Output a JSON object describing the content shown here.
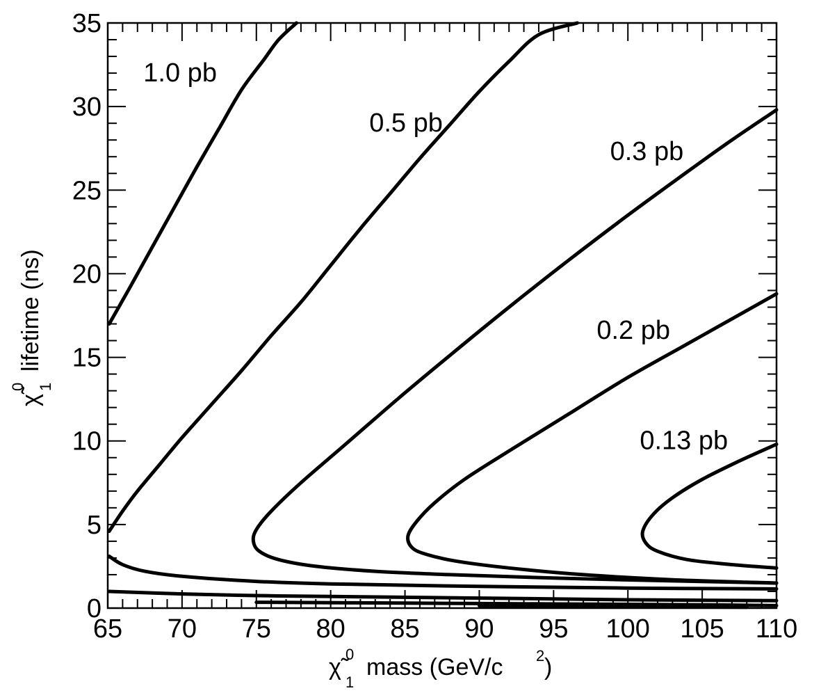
{
  "chart_data": {
    "type": "line",
    "title": "",
    "xlabel": {
      "main": "mass (GeV/c",
      "sup": "2",
      "close": ")",
      "symbol": "χ̃",
      "symbol_sup": "0",
      "symbol_sub": "1"
    },
    "ylabel": {
      "main": "lifetime (ns)",
      "symbol": "χ̃",
      "symbol_sup": "0",
      "symbol_sub": "1"
    },
    "xlim": [
      65,
      110
    ],
    "ylim": [
      0,
      35
    ],
    "x_ticks": [
      65,
      70,
      75,
      80,
      85,
      90,
      95,
      100,
      105,
      110
    ],
    "y_ticks": [
      0,
      5,
      10,
      15,
      20,
      25,
      30,
      35
    ],
    "grid": false,
    "series": [
      {
        "name": "1.0 pb",
        "points": [
          [
            65.1,
            17.0
          ],
          [
            66.5,
            19.2
          ],
          [
            68.0,
            21.6
          ],
          [
            69.5,
            24.0
          ],
          [
            71.0,
            26.4
          ],
          [
            72.5,
            28.7
          ],
          [
            74.0,
            31.0
          ],
          [
            75.5,
            32.8
          ],
          [
            76.5,
            34.0
          ],
          [
            77.7,
            35.0
          ]
        ]
      },
      {
        "name": "0.5 pb",
        "points": [
          [
            65.1,
            4.6
          ],
          [
            66.0,
            5.8
          ],
          [
            67.0,
            7.0
          ],
          [
            68.5,
            8.6
          ],
          [
            70.0,
            10.2
          ],
          [
            72.0,
            12.2
          ],
          [
            74.0,
            14.2
          ],
          [
            76.0,
            16.3
          ],
          [
            78.0,
            18.3
          ],
          [
            80.0,
            20.5
          ],
          [
            82.0,
            22.7
          ],
          [
            84.0,
            24.8
          ],
          [
            86.0,
            26.9
          ],
          [
            88.0,
            28.9
          ],
          [
            90.0,
            30.9
          ],
          [
            92.0,
            32.7
          ],
          [
            94.0,
            34.3
          ],
          [
            96.6,
            35.0
          ]
        ]
      },
      {
        "name": "0.3 pb",
        "points": [
          [
            110.0,
            29.8
          ],
          [
            107.0,
            28.0
          ],
          [
            104.0,
            26.1
          ],
          [
            100.0,
            23.5
          ],
          [
            96.0,
            20.8
          ],
          [
            92.0,
            18.0
          ],
          [
            88.0,
            15.1
          ],
          [
            84.5,
            12.5
          ],
          [
            81.0,
            9.8
          ],
          [
            78.0,
            7.5
          ],
          [
            76.0,
            5.8
          ],
          [
            75.0,
            4.7
          ],
          [
            74.8,
            4.0
          ],
          [
            75.2,
            3.4
          ],
          [
            76.5,
            2.9
          ],
          [
            79.0,
            2.5
          ],
          [
            83.0,
            2.2
          ],
          [
            88.0,
            2.0
          ],
          [
            95.0,
            1.8
          ],
          [
            102.0,
            1.65
          ],
          [
            110.0,
            1.5
          ]
        ]
      },
      {
        "name": "0.2 pb",
        "points": [
          [
            110.0,
            18.8
          ],
          [
            107.0,
            17.3
          ],
          [
            104.0,
            15.8
          ],
          [
            100.0,
            13.8
          ],
          [
            96.0,
            11.6
          ],
          [
            92.0,
            9.4
          ],
          [
            89.0,
            7.7
          ],
          [
            87.0,
            6.3
          ],
          [
            85.8,
            5.2
          ],
          [
            85.2,
            4.3
          ],
          [
            85.5,
            3.6
          ],
          [
            86.5,
            3.2
          ],
          [
            88.5,
            2.8
          ],
          [
            92.0,
            2.4
          ],
          [
            97.0,
            2.0
          ],
          [
            103.0,
            1.7
          ],
          [
            110.0,
            1.5
          ]
        ]
      },
      {
        "name": "0.13 pb",
        "points": [
          [
            110.0,
            9.8
          ],
          [
            107.5,
            8.8
          ],
          [
            105.0,
            7.7
          ],
          [
            103.0,
            6.6
          ],
          [
            101.7,
            5.6
          ],
          [
            101.0,
            4.6
          ],
          [
            101.2,
            3.9
          ],
          [
            102.0,
            3.4
          ],
          [
            104.0,
            2.9
          ],
          [
            107.0,
            2.6
          ],
          [
            110.0,
            2.4
          ]
        ]
      },
      {
        "name": "",
        "points": [
          [
            65.1,
            3.1
          ],
          [
            66.0,
            2.6
          ],
          [
            67.5,
            2.2
          ],
          [
            70.0,
            1.9
          ],
          [
            75.0,
            1.6
          ],
          [
            80.0,
            1.45
          ],
          [
            90.0,
            1.3
          ],
          [
            100.0,
            1.2
          ],
          [
            110.0,
            1.15
          ]
        ]
      },
      {
        "name": "",
        "points": [
          [
            65.1,
            1.0
          ],
          [
            70.0,
            0.85
          ],
          [
            75.0,
            0.75
          ],
          [
            80.0,
            0.7
          ],
          [
            90.0,
            0.6
          ],
          [
            100.0,
            0.5
          ],
          [
            110.0,
            0.45
          ]
        ]
      },
      {
        "name": "",
        "points": [
          [
            75.0,
            0.35
          ],
          [
            85.0,
            0.3
          ],
          [
            95.0,
            0.25
          ],
          [
            105.0,
            0.2
          ],
          [
            110.0,
            0.15
          ]
        ]
      },
      {
        "name": "",
        "points": [
          [
            90.0,
            0.15
          ],
          [
            100.0,
            0.1
          ],
          [
            108.0,
            0.05
          ]
        ]
      }
    ],
    "annotations": [
      {
        "text": "1.0 pb",
        "x": 67.4,
        "y": 31.5
      },
      {
        "text": "0.5 pb",
        "x": 82.6,
        "y": 28.5
      },
      {
        "text": "0.3 pb",
        "x": 98.8,
        "y": 26.8
      },
      {
        "text": "0.2 pb",
        "x": 97.9,
        "y": 16.1
      },
      {
        "text": "0.13 pb",
        "x": 100.8,
        "y": 9.5
      }
    ]
  }
}
